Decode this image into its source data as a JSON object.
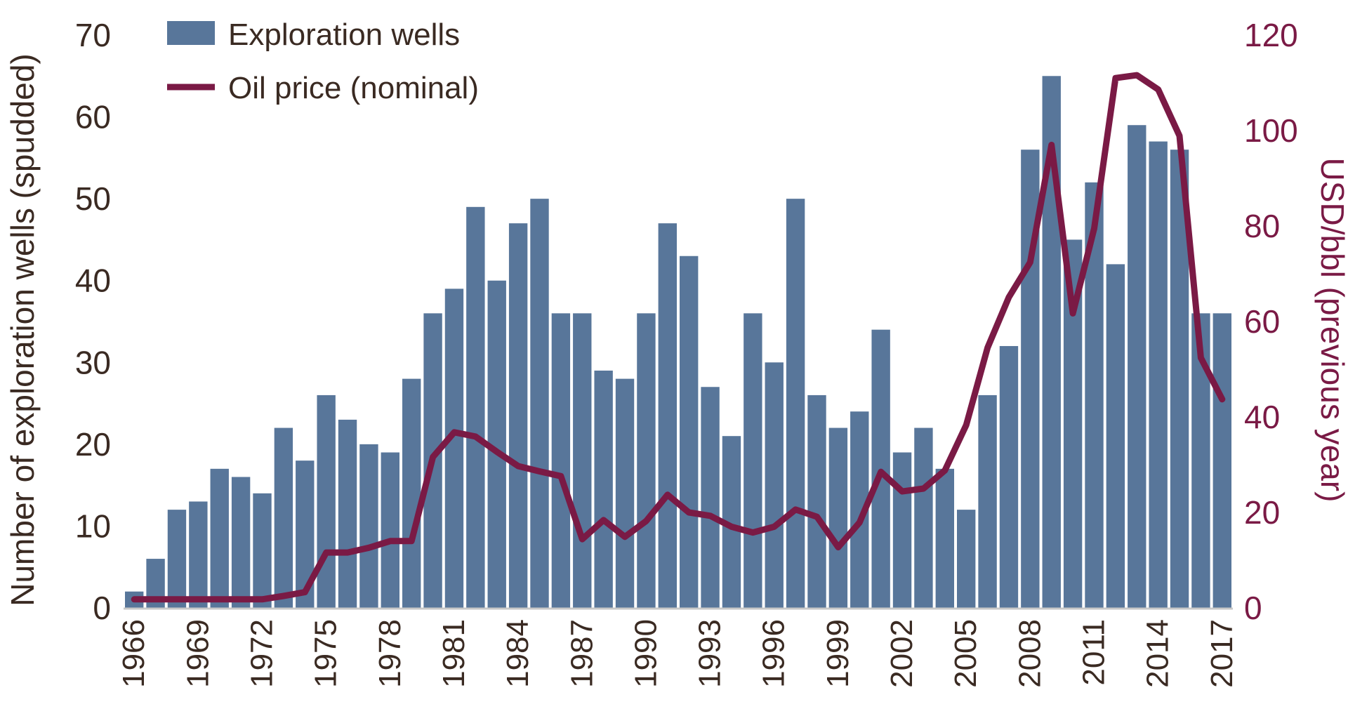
{
  "chart_data": {
    "type": "bar+line",
    "title": "",
    "xlabel": "",
    "ylabel": "Number of exploration wells (spudded)",
    "y2label": "USD/bbl (previous year)",
    "ylim": [
      0,
      70
    ],
    "y2lim": [
      0,
      120
    ],
    "yticks": [
      "0",
      "10",
      "20",
      "30",
      "40",
      "50",
      "60",
      "70"
    ],
    "y2ticks": [
      "0",
      "20",
      "40",
      "60",
      "80",
      "100",
      "120"
    ],
    "grid": false,
    "legend_position": "top-left",
    "categories": [
      1966,
      1967,
      1968,
      1969,
      1970,
      1971,
      1972,
      1973,
      1974,
      1975,
      1976,
      1977,
      1978,
      1979,
      1980,
      1981,
      1982,
      1983,
      1984,
      1985,
      1986,
      1987,
      1988,
      1989,
      1990,
      1991,
      1992,
      1993,
      1994,
      1995,
      1996,
      1997,
      1998,
      1999,
      2000,
      2001,
      2002,
      2003,
      2004,
      2005,
      2006,
      2007,
      2008,
      2009,
      2010,
      2011,
      2012,
      2013,
      2014,
      2015,
      2016,
      2017
    ],
    "xtick_labels": [
      "1966",
      "1969",
      "1972",
      "1975",
      "1978",
      "1981",
      "1984",
      "1987",
      "1990",
      "1993",
      "1996",
      "1999",
      "2002",
      "2005",
      "2008",
      "2011",
      "2014",
      "2017"
    ],
    "series": [
      {
        "name": "Exploration wells",
        "type": "bar",
        "axis": "left",
        "color": "#58769a",
        "values": [
          2,
          6,
          12,
          13,
          17,
          16,
          14,
          22,
          18,
          26,
          23,
          20,
          19,
          28,
          36,
          39,
          49,
          40,
          47,
          50,
          36,
          36,
          29,
          28,
          36,
          47,
          43,
          27,
          21,
          36,
          30,
          50,
          26,
          22,
          24,
          34,
          19,
          22,
          17,
          12,
          26,
          32,
          56,
          65,
          45,
          52,
          42,
          59,
          57,
          56,
          36,
          36
        ]
      },
      {
        "name": "Oil price (nominal)",
        "type": "line",
        "axis": "right",
        "color": "#7a1a45",
        "values": [
          1.8,
          1.8,
          1.8,
          1.8,
          1.8,
          1.8,
          1.8,
          2.5,
          3.3,
          11.6,
          11.6,
          12.6,
          14,
          14,
          31.6,
          36.8,
          35.9,
          32.7,
          29.7,
          28.6,
          27.6,
          14.4,
          18.4,
          14.9,
          18.2,
          23.7,
          20,
          19.3,
          17,
          15.8,
          17,
          20.6,
          19.1,
          12.7,
          17.9,
          28.5,
          24.4,
          25,
          28.8,
          38.3,
          54.5,
          65.1,
          72.4,
          97,
          61.7,
          79.5,
          111,
          111.6,
          108.6,
          98.9,
          52.4,
          43.7
        ]
      }
    ]
  }
}
